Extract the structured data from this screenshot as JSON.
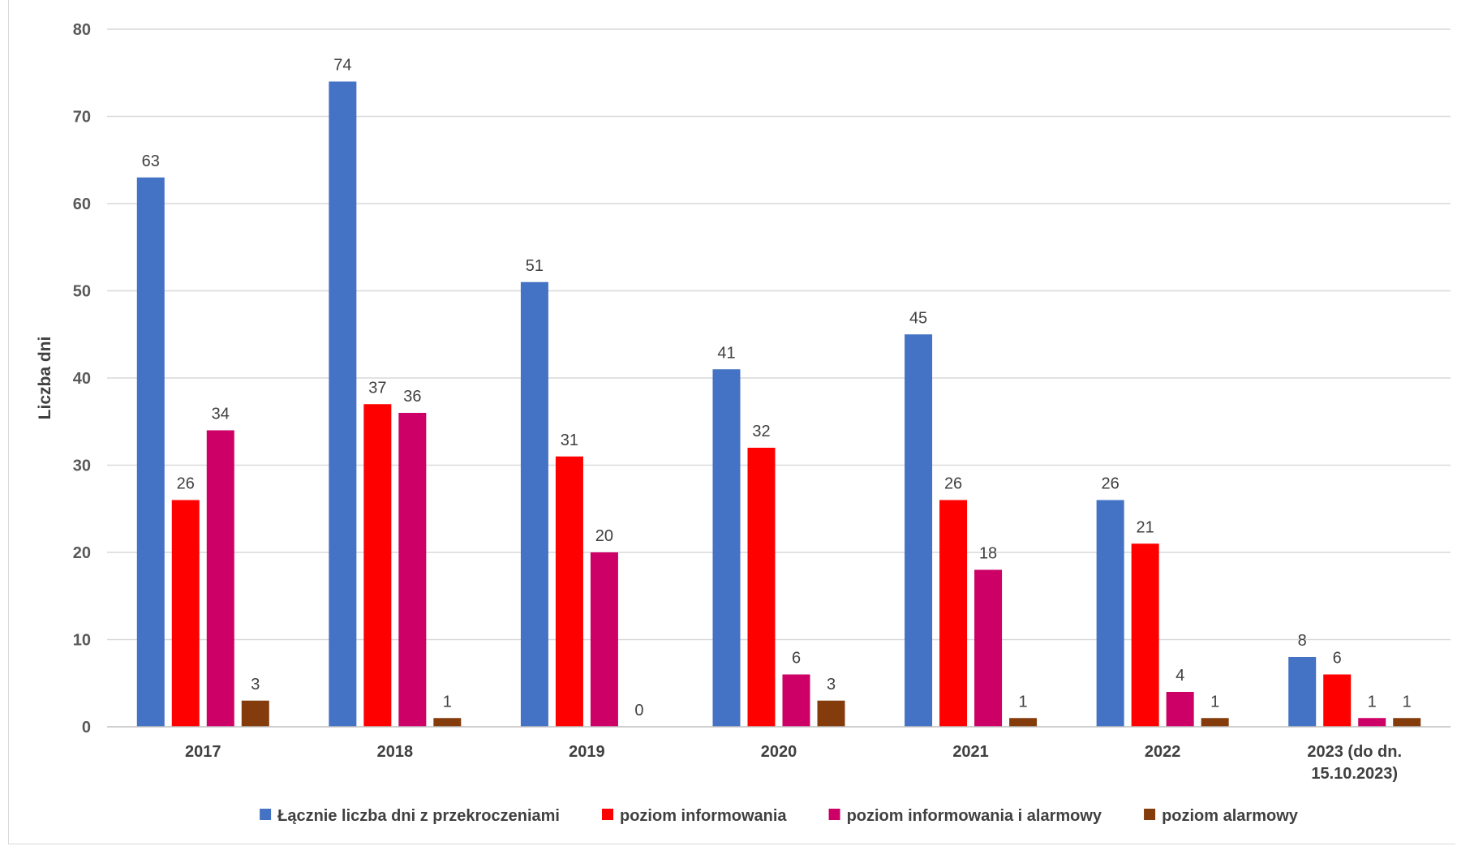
{
  "chart_data": {
    "type": "bar",
    "title": "",
    "xlabel": "",
    "ylabel": "Liczba dni",
    "ylim": [
      0,
      80
    ],
    "yticks": [
      0,
      10,
      20,
      30,
      40,
      50,
      60,
      70,
      80
    ],
    "grid": true,
    "legend_position": "bottom",
    "categories": [
      "2017",
      "2018",
      "2019",
      "2020",
      "2021",
      "2022",
      "2023 (do dn. 15.10.2023)"
    ],
    "category_lines": [
      [
        "2017"
      ],
      [
        "2018"
      ],
      [
        "2019"
      ],
      [
        "2020"
      ],
      [
        "2021"
      ],
      [
        "2022"
      ],
      [
        "2023 (do dn.",
        "15.10.2023)"
      ]
    ],
    "series": [
      {
        "name": "Łącznie liczba dni z przekroczeniami",
        "color": "#4472c4",
        "values": [
          63,
          74,
          51,
          41,
          45,
          26,
          8
        ]
      },
      {
        "name": "poziom informowania",
        "color": "#ff0000",
        "values": [
          26,
          37,
          31,
          32,
          26,
          21,
          6
        ]
      },
      {
        "name": "poziom informowania i alarmowy",
        "color": "#cc0066",
        "values": [
          34,
          36,
          20,
          6,
          18,
          4,
          1
        ]
      },
      {
        "name": "poziom alarmowy",
        "color": "#843c0c",
        "values": [
          3,
          1,
          0,
          3,
          1,
          1,
          1
        ]
      }
    ]
  }
}
